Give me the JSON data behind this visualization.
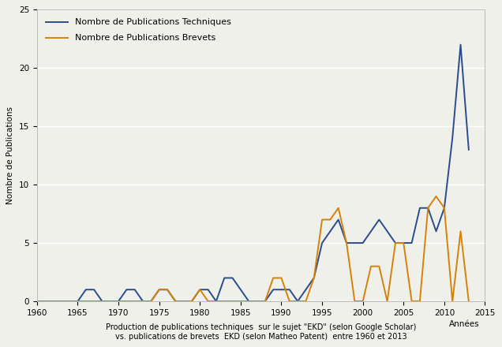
{
  "years_tech": [
    1960,
    1961,
    1962,
    1963,
    1964,
    1965,
    1966,
    1967,
    1968,
    1969,
    1970,
    1971,
    1972,
    1973,
    1974,
    1975,
    1976,
    1977,
    1978,
    1979,
    1980,
    1981,
    1982,
    1983,
    1984,
    1985,
    1986,
    1987,
    1988,
    1989,
    1990,
    1991,
    1992,
    1993,
    1994,
    1995,
    1996,
    1997,
    1998,
    1999,
    2000,
    2001,
    2002,
    2003,
    2004,
    2005,
    2006,
    2007,
    2008,
    2009,
    2010,
    2011,
    2012,
    2013
  ],
  "values_tech": [
    0,
    0,
    0,
    0,
    0,
    0,
    1,
    1,
    0,
    0,
    0,
    1,
    1,
    0,
    0,
    1,
    1,
    0,
    0,
    0,
    1,
    1,
    0,
    2,
    2,
    1,
    0,
    0,
    0,
    1,
    1,
    1,
    0,
    1,
    2,
    5,
    6,
    7,
    5,
    5,
    5,
    6,
    7,
    6,
    5,
    5,
    5,
    8,
    8,
    6,
    8,
    14,
    22,
    13
  ],
  "years_pat": [
    1960,
    1961,
    1962,
    1963,
    1964,
    1965,
    1966,
    1967,
    1968,
    1969,
    1970,
    1971,
    1972,
    1973,
    1974,
    1975,
    1976,
    1977,
    1978,
    1979,
    1980,
    1981,
    1982,
    1983,
    1984,
    1985,
    1986,
    1987,
    1988,
    1989,
    1990,
    1991,
    1992,
    1993,
    1994,
    1995,
    1996,
    1997,
    1998,
    1999,
    2000,
    2001,
    2002,
    2003,
    2004,
    2005,
    2006,
    2007,
    2008,
    2009,
    2010,
    2011,
    2012,
    2013
  ],
  "values_pat": [
    0,
    0,
    0,
    0,
    0,
    0,
    0,
    0,
    0,
    0,
    0,
    0,
    0,
    0,
    0,
    1,
    1,
    0,
    0,
    0,
    1,
    0,
    0,
    0,
    0,
    0,
    0,
    0,
    0,
    2,
    2,
    0,
    0,
    0,
    2,
    7,
    7,
    8,
    5,
    0,
    0,
    3,
    3,
    0,
    5,
    5,
    0,
    0,
    8,
    9,
    8,
    0,
    6,
    0
  ],
  "color_tech": "#2b4b8c",
  "color_pat": "#d4820a",
  "legend_tech": "Nombre de Publications Techniques",
  "legend_pat": "Nombre de Publications Brevets",
  "ylabel": "Nombre de Publications",
  "xlabel1": "Production de publications techniques  sur le sujet \"EKD\" (selon Google Scholar)",
  "xlabel2": "vs. publications de brevets  EKD (selon Matheo Patent)  entre 1960 et 2013",
  "xlabel_annees": "Années",
  "ylim": [
    0,
    25
  ],
  "yticks": [
    0,
    5,
    10,
    15,
    20,
    25
  ],
  "xlim": [
    1960,
    2015
  ],
  "xticks": [
    1960,
    1965,
    1970,
    1975,
    1980,
    1985,
    1990,
    1995,
    2000,
    2005,
    2010,
    2015
  ],
  "background_color": "#f0f0eb",
  "grid_color": "#ffffff",
  "axis_fontsize": 7.5,
  "legend_fontsize": 8
}
